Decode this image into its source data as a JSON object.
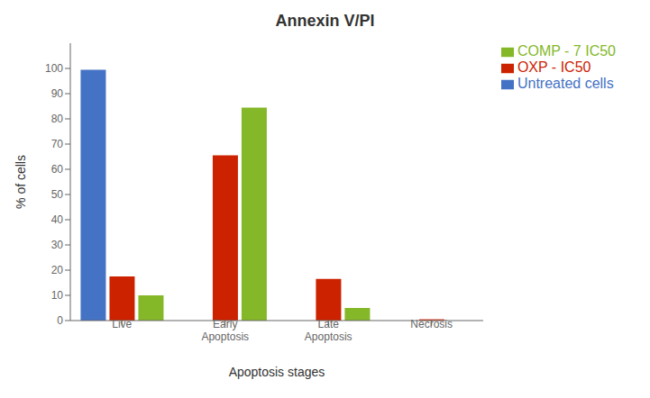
{
  "chart_data": {
    "type": "bar",
    "title": "Annexin V/PI",
    "categories": [
      "Live",
      "Early\nApoptosis",
      "Late\nApoptosis",
      "Necrosis"
    ],
    "series": [
      {
        "name": "Untreated cells",
        "color": "#4472C4",
        "values": [
          99.5,
          0,
          0,
          0
        ]
      },
      {
        "name": "OXP - IC50",
        "color": "#CC2200",
        "values": [
          17.5,
          65.5,
          16.5,
          0.5
        ]
      },
      {
        "name": "COMP - 7 IC50",
        "color": "#84B828",
        "values": [
          10.0,
          84.5,
          5.0,
          0
        ]
      }
    ],
    "xlabel": "Apoptosis stages",
    "ylabel": "% of cells",
    "ylim": [
      0,
      110
    ],
    "yticks": [
      0,
      10,
      20,
      30,
      40,
      50,
      60,
      70,
      80,
      90,
      100
    ],
    "grid": false,
    "legend": "right"
  }
}
